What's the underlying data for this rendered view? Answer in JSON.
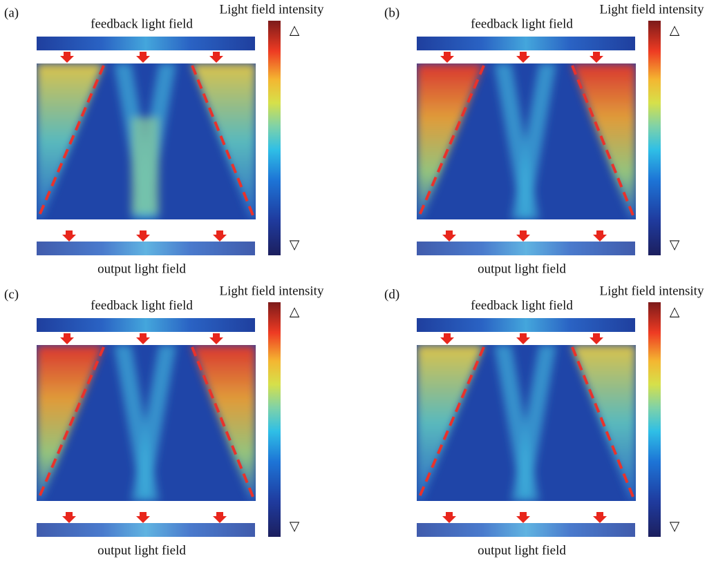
{
  "panels": [
    {
      "label": "(a)",
      "feedback": "feedback light field",
      "output": "output light field",
      "colorbar_title": "Light field intensity",
      "colorbar_high": "△",
      "colorbar_low": "▽"
    },
    {
      "label": "(b)",
      "feedback": "feedback light field",
      "output": "output light field",
      "colorbar_title": "Light field intensity",
      "colorbar_high": "△",
      "colorbar_low": "▽"
    },
    {
      "label": "(c)",
      "feedback": "feedback light field",
      "output": "output light field",
      "colorbar_title": "Light field intensity",
      "colorbar_high": "△",
      "colorbar_low": "▽"
    },
    {
      "label": "(d)",
      "feedback": "feedback light field",
      "output": "output light field",
      "colorbar_title": "Light field intensity",
      "colorbar_high": "△",
      "colorbar_low": "▽"
    }
  ]
}
